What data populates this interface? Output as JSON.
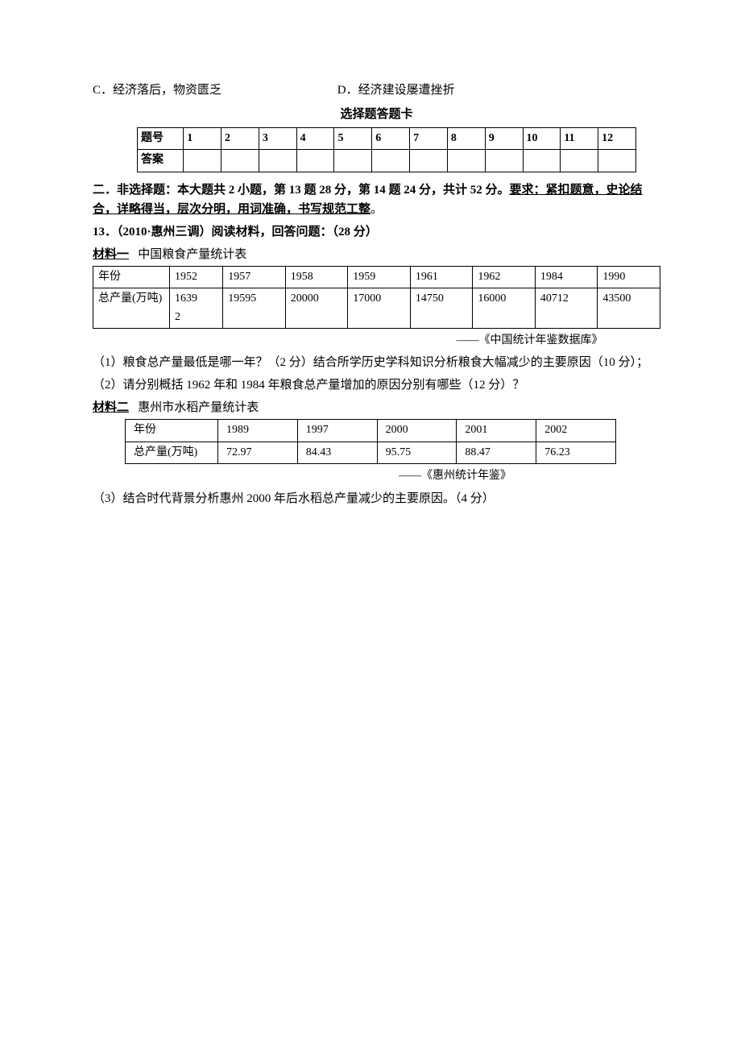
{
  "options": {
    "c": "C．经济落后，物资匮乏",
    "d": "D．经济建设屡遭挫折"
  },
  "answer_card": {
    "title": "选择题答题卡",
    "headers": [
      "题号",
      "1",
      "2",
      "3",
      "4",
      "5",
      "6",
      "7",
      "8",
      "9",
      "10",
      "11",
      "12"
    ],
    "row_label": "答案"
  },
  "section_two": {
    "prefix": "二．非选择题：本大题共 2 小题，第 13 题 28 分，第 14 题 24 分，共计 52 分。",
    "req_label": "要求：",
    "requirement": "紧扣题意，史论结合，详略得当，层次分明，用词准确，书写规范工整",
    "period": "。"
  },
  "q13": {
    "header": "13．（2010·惠州三调）阅读材料，回答问题：（28 分）",
    "material1_label": "材料一",
    "material1_desc": "中国粮食产量统计表",
    "table1": {
      "columns": [
        "年份",
        "1952",
        "1957",
        "1958",
        "1959",
        "1961",
        "1962",
        "1984",
        "1990"
      ],
      "rows": [
        [
          "总产量(万吨)",
          "16392",
          "19595",
          "20000",
          "17000",
          "14750",
          "16000",
          "40712",
          "43500"
        ]
      ]
    },
    "source1": "——《中国统计年鉴数据库》",
    "q1": "（1）粮食总产量最低是哪一年？（2 分）结合所学历史学科知识分析粮食大幅减少的主要原因（10 分）；",
    "q2": "（2）请分别概括 1962 年和 1984 年粮食总产量增加的原因分别有哪些（12 分）？",
    "material2_label": "材料二",
    "material2_desc": "惠州市水稻产量统计表",
    "table2": {
      "columns": [
        "年份",
        "1989",
        "1997",
        "2000",
        "2001",
        "2002"
      ],
      "rows": [
        [
          "总产量(万吨)",
          "72.97",
          "84.43",
          "95.75",
          "88.47",
          "76.23"
        ]
      ]
    },
    "source2": "——《惠州统计年鉴》",
    "q3": "（3）结合时代背景分析惠州 2000 年后水稻总产量减少的主要原因。（4 分）"
  }
}
